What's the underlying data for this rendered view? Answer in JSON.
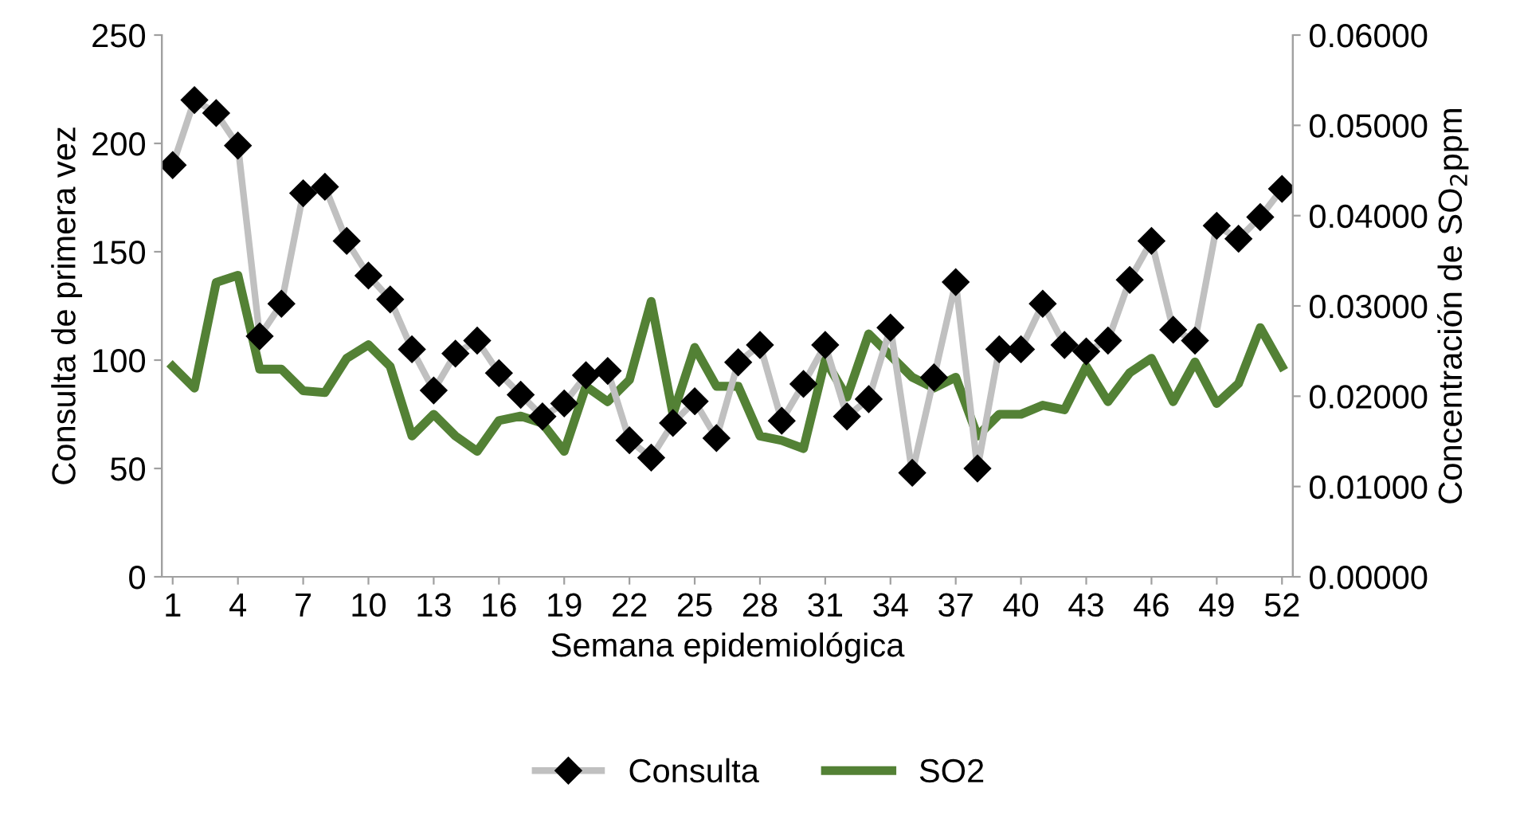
{
  "chart_data": {
    "type": "line",
    "xlabel": "Semana epidemiológica",
    "ylabel": "Consulta de primera vez",
    "y2label": "Concentración de SO$_{2}$ppm",
    "categories": [
      "1",
      null,
      null,
      "4",
      null,
      null,
      "7",
      null,
      null,
      "10",
      null,
      null,
      "13",
      null,
      null,
      "16",
      null,
      null,
      "19",
      null,
      null,
      "22",
      null,
      null,
      "25",
      null,
      null,
      "28",
      null,
      null,
      "31",
      null,
      null,
      "34",
      null,
      null,
      "37",
      null,
      null,
      "40",
      null,
      null,
      "43",
      null,
      null,
      "46",
      null,
      null,
      "49",
      null,
      null,
      "52"
    ],
    "series": [
      {
        "name": "Consulta",
        "color": "#c0c0c0",
        "marker": "diamond",
        "values": [
          190,
          220,
          214,
          199,
          111,
          126,
          177,
          180,
          155,
          139,
          128,
          105,
          86,
          103,
          109,
          94,
          84,
          74,
          80,
          93,
          95,
          63,
          55,
          71,
          81,
          64,
          99,
          107,
          72,
          89,
          107,
          74,
          82,
          115,
          48,
          92,
          136,
          50,
          105,
          105,
          126,
          107,
          104,
          109,
          137,
          155,
          114,
          109,
          162,
          156,
          166,
          179
        ]
      },
      {
        "name": "SO2",
        "color": "#538135",
        "axis": "y2",
        "marker": "none",
        "values": [
          0.0233,
          0.0209,
          0.0326,
          0.0334,
          0.023,
          0.023,
          0.0206,
          0.0204,
          0.0242,
          0.0257,
          0.0233,
          0.0156,
          0.018,
          0.0156,
          0.0139,
          0.0173,
          0.0178,
          0.017,
          0.0139,
          0.0211,
          0.0194,
          0.0218,
          0.0305,
          0.018,
          0.0254,
          0.0211,
          0.0211,
          0.0156,
          0.0151,
          0.0142,
          0.024,
          0.0199,
          0.0269,
          0.0245,
          0.0221,
          0.0209,
          0.0221,
          0.0156,
          0.018,
          0.018,
          0.019,
          0.0185,
          0.0233,
          0.0194,
          0.0226,
          0.0242,
          0.0194,
          0.0238,
          0.0192,
          0.0214,
          0.0276,
          0.0233
        ]
      }
    ],
    "ylim": [
      0,
      250
    ],
    "yticks": [
      0,
      50,
      100,
      150,
      200,
      250
    ],
    "y2lim": [
      0,
      0.06
    ],
    "y2ticks": [
      {
        "value": 0,
        "label": "0.00000"
      },
      {
        "value": 0.01,
        "label": "0.01000"
      },
      {
        "value": 0.02,
        "label": "0.02000"
      },
      {
        "value": 0.03,
        "label": "0.03000"
      },
      {
        "value": 0.04,
        "label": "0.04000"
      },
      {
        "value": 0.05,
        "label": "0.05000"
      },
      {
        "value": 0.06,
        "label": "0.06000"
      }
    ],
    "grid": false,
    "legend": "bottom"
  }
}
